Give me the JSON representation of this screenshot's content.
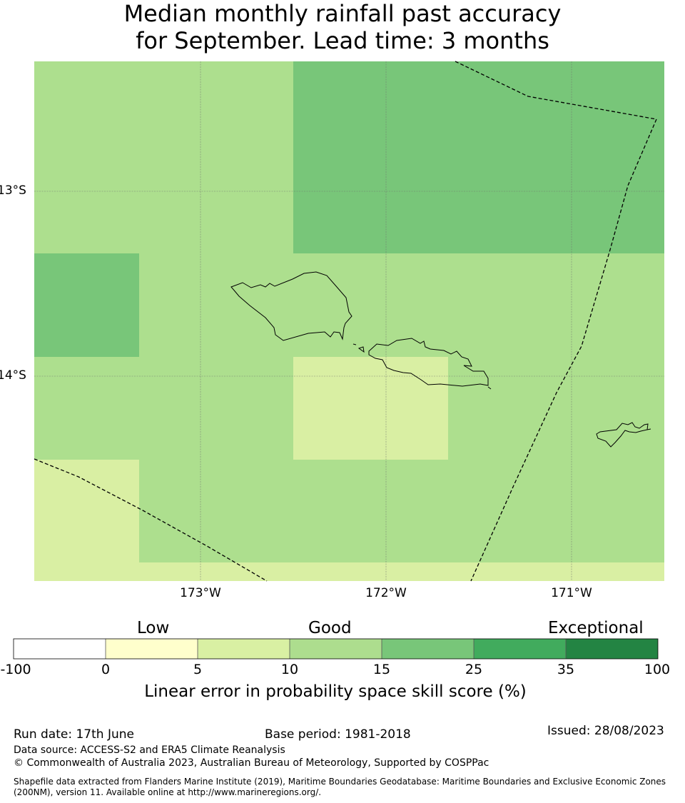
{
  "title": {
    "line1": "Median monthly rainfall past accuracy",
    "line2": "for September. Lead time: 3 months"
  },
  "map": {
    "lat_labels": [
      "13°S",
      "14°S"
    ],
    "lon_labels": [
      "173°W",
      "172°W",
      "171°W"
    ],
    "colors": {
      "c5_10": "#d9efa3",
      "c10_15": "#addf8e",
      "c15_25": "#78c679",
      "coast": "#000000",
      "grid": "#7a7a7a"
    }
  },
  "colorbar": {
    "categories": [
      "Low",
      "Good",
      "Exceptional"
    ],
    "ticks": [
      "-100",
      "0",
      "5",
      "10",
      "15",
      "25",
      "35",
      "100"
    ],
    "colors": [
      "#ffffff",
      "#ffffcc",
      "#d9f0a3",
      "#addd8e",
      "#78c679",
      "#41ab5d",
      "#238443"
    ],
    "label": "Linear error in probability space skill score (%)"
  },
  "footer": {
    "run_date": "Run date: 17th June",
    "base_period": "Base period: 1981-2018",
    "issued": "Issued: 28/08/2023",
    "data_source": "Data source: ACCESS-S2 and ERA5 Climate Reanalysis",
    "copyright": "© Commonwealth of Australia 2023, Australian Bureau of Meteorology, Supported by COSPPac",
    "shapefile": "Shapefile data extracted from Flanders Marine Institute (2019), Maritime Boundaries Geodatabase: Maritime Boundaries and Exclusive Economic Zones (200NM), version 11. Available online at http://www.marineregions.org/."
  }
}
